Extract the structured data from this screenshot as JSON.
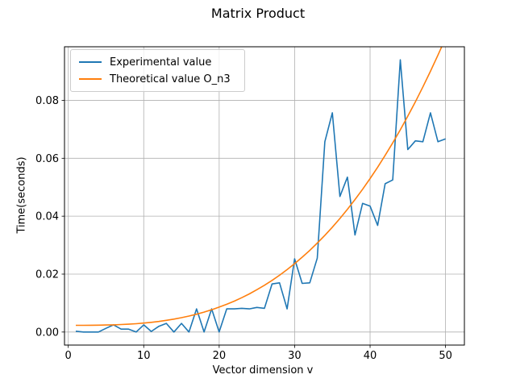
{
  "chart_data": {
    "type": "line",
    "title": "Matrix Product",
    "xlabel": "Vector dimension v",
    "ylabel": "Time(seconds)",
    "xlim": [
      -0.5,
      52.5
    ],
    "ylim": [
      -0.0045,
      0.0985
    ],
    "xticks": [
      0,
      10,
      20,
      30,
      40,
      50
    ],
    "xtick_labels": [
      "0",
      "10",
      "20",
      "30",
      "40",
      "50"
    ],
    "yticks": [
      0.0,
      0.02,
      0.04,
      0.06,
      0.08
    ],
    "ytick_labels": [
      "0.00",
      "0.02",
      "0.04",
      "0.06",
      "0.08"
    ],
    "grid": true,
    "legend_position": "top-left",
    "x": [
      1,
      2,
      3,
      4,
      5,
      6,
      7,
      8,
      9,
      10,
      11,
      12,
      13,
      14,
      15,
      16,
      17,
      18,
      19,
      20,
      21,
      22,
      23,
      24,
      25,
      26,
      27,
      28,
      29,
      30,
      31,
      32,
      33,
      34,
      35,
      36,
      37,
      38,
      39,
      40,
      41,
      42,
      43,
      44,
      45,
      46,
      47,
      48,
      49,
      50
    ],
    "series": [
      {
        "name": "Experimental value",
        "color": "#1f77b4",
        "values": [
          0.0003,
          0.0,
          0.0,
          0.0,
          0.0013,
          0.0025,
          0.001,
          0.001,
          0.0,
          0.0025,
          0.0002,
          0.002,
          0.003,
          0.0,
          0.003,
          0.0,
          0.008,
          0.0,
          0.008,
          0.0,
          0.008,
          0.008,
          0.0082,
          0.008,
          0.0085,
          0.0082,
          0.0166,
          0.017,
          0.008,
          0.0253,
          0.0168,
          0.017,
          0.0255,
          0.0657,
          0.0757,
          0.0468,
          0.0535,
          0.0335,
          0.0444,
          0.0435,
          0.0368,
          0.0512,
          0.0525,
          0.094,
          0.063,
          0.066,
          0.0657,
          0.0757,
          0.0657,
          0.0667
        ]
      },
      {
        "name": "Theoretical value O_n3",
        "color": "#ff7f0e",
        "values": [
          0.00232,
          0.00233,
          0.00234,
          0.00237,
          0.00242,
          0.00249,
          0.00259,
          0.00272,
          0.00289,
          0.0031,
          0.00336,
          0.00367,
          0.00404,
          0.00447,
          0.00496,
          0.00553,
          0.00617,
          0.00689,
          0.0077,
          0.0086,
          0.00959,
          0.01068,
          0.01188,
          0.01319,
          0.01462,
          0.01616,
          0.01783,
          0.01962,
          0.02155,
          0.02362,
          0.02583,
          0.02819,
          0.03071,
          0.03338,
          0.03621,
          0.03921,
          0.04238,
          0.04574,
          0.04927,
          0.05299,
          0.0569,
          0.061,
          0.06531,
          0.06983,
          0.07455,
          0.07949,
          0.08465,
          0.09003,
          0.09563,
          0.10146
        ]
      }
    ]
  }
}
